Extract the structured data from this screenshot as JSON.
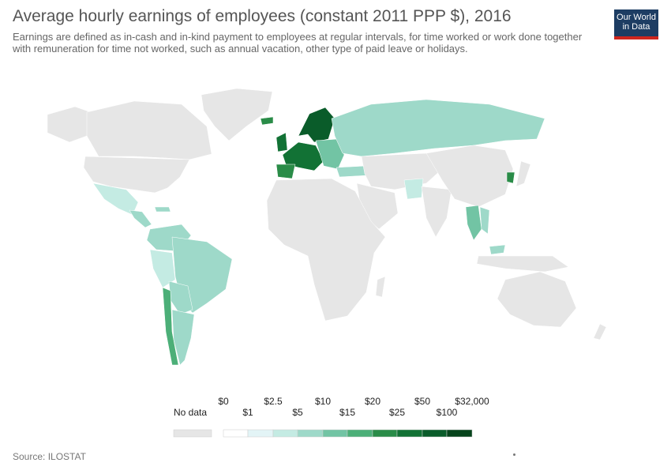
{
  "title": "Average hourly earnings of employees (constant 2011 PPP $), 2016",
  "subtitle": "Earnings are defined as in-cash and in-kind payment to employees at regular intervals, for time worked or work done together with remuneration for time not worked, such as annual vacation, other type of paid leave or holidays.",
  "logo": {
    "line1": "Our World",
    "line2": "in Data"
  },
  "source": "Source: ILOSTAT",
  "colors": {
    "no_data": "#e6e6e6",
    "bins": [
      "#ffffff",
      "#e3f4f6",
      "#c4ebe3",
      "#9ed9c9",
      "#72c4a4",
      "#4caf78",
      "#2a8c48",
      "#127235",
      "#0a5c2a",
      "#06441c"
    ]
  },
  "legend": {
    "no_data_label": "No data",
    "top_labels": [
      "$0",
      "$2.5",
      "$10",
      "$20",
      "$50",
      "$32,000"
    ],
    "bottom_labels": [
      "$1",
      "$5",
      "$15",
      "$25",
      "$100"
    ]
  }
}
